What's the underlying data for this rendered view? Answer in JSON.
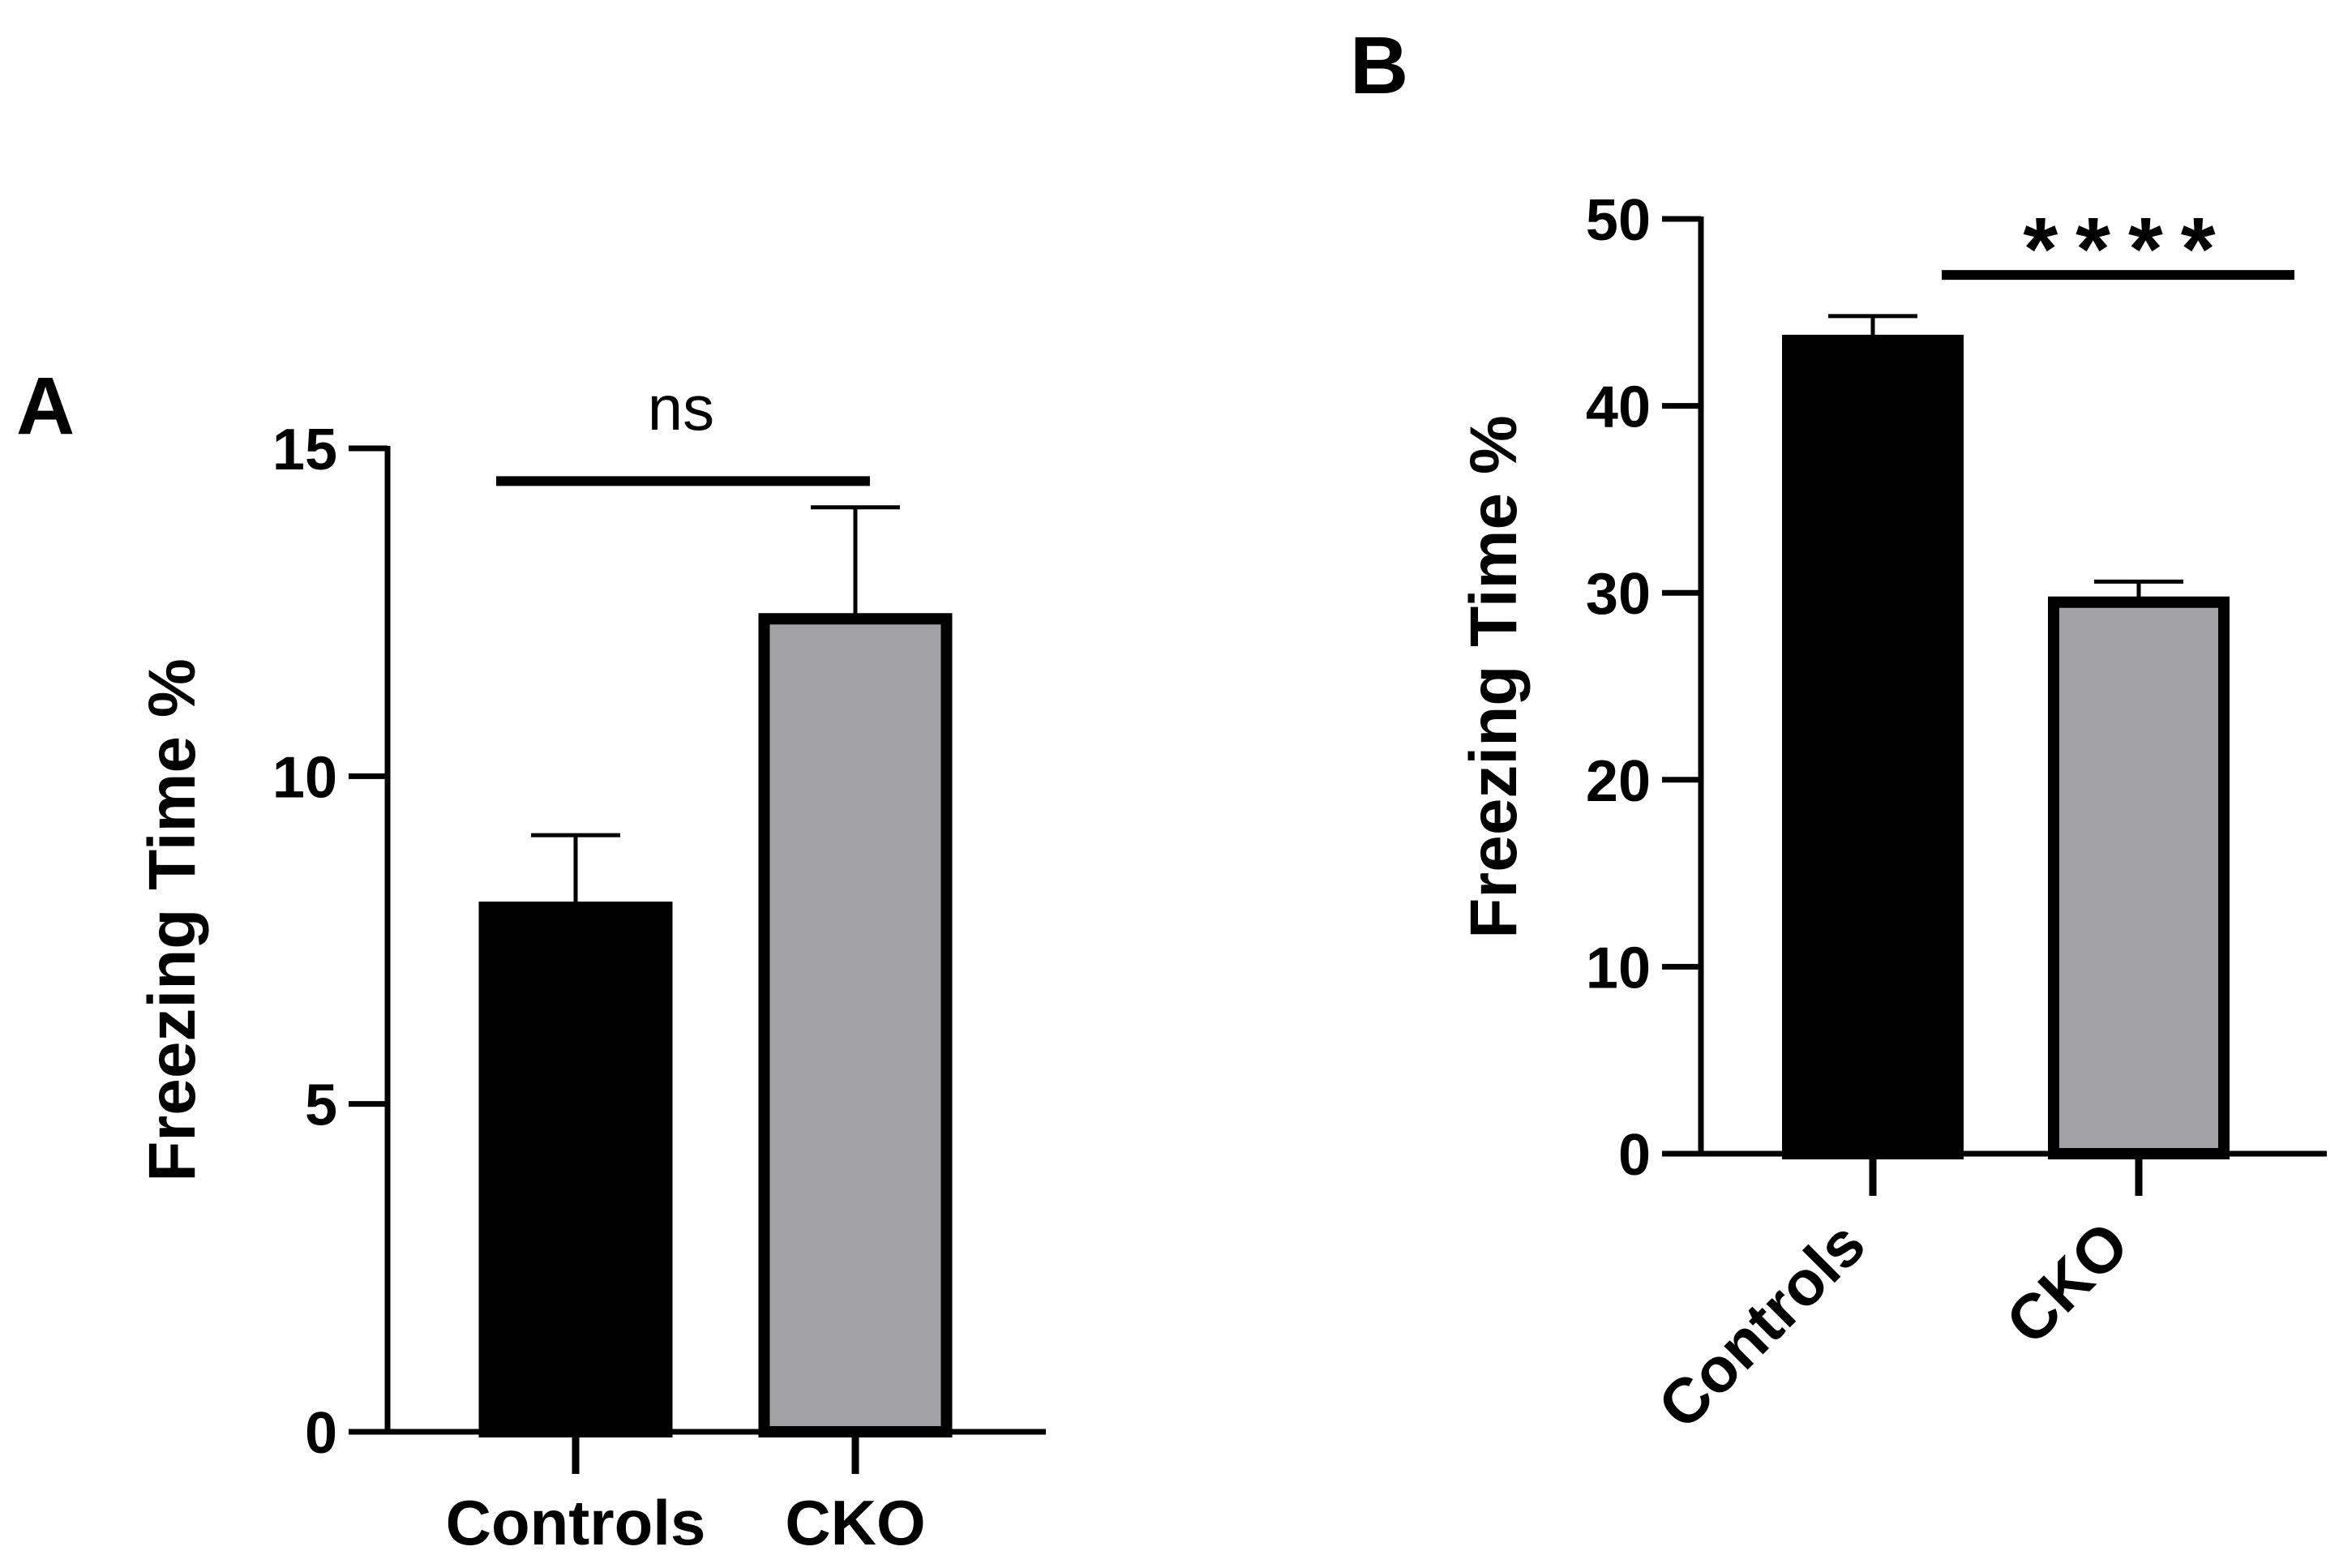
{
  "chart_data": [
    {
      "panel": "A",
      "type": "bar",
      "categories": [
        "Controls",
        "CKO"
      ],
      "values": [
        8.0,
        12.4
      ],
      "error_upper": [
        9.1,
        14.1
      ],
      "bar_colors": [
        "#000000",
        "#a2a1a6"
      ],
      "ylabel": "Freezing Time %",
      "xlabel": "",
      "ylim": [
        0,
        15
      ],
      "yticks": [
        "0",
        "5",
        "10",
        "15"
      ],
      "ytick_values": [
        0,
        5,
        10,
        15
      ],
      "significance": "ns",
      "significance_line_y": 14.5,
      "significance_span": [
        0,
        1
      ],
      "grid": false
    },
    {
      "panel": "B",
      "type": "bar",
      "categories": [
        "Controls",
        "CKO"
      ],
      "values": [
        43.5,
        29.5
      ],
      "error_upper": [
        44.8,
        30.6
      ],
      "bar_colors": [
        "#000000",
        "#a2a1a6"
      ],
      "ylabel": "Freezing Time %",
      "xlabel": "",
      "ylim": [
        0,
        50
      ],
      "yticks": [
        "0",
        "10",
        "20",
        "30",
        "40",
        "50"
      ],
      "ytick_values": [
        0,
        10,
        20,
        30,
        40,
        50
      ],
      "significance": "****",
      "significance_line_y": 47,
      "significance_span": [
        0,
        1
      ],
      "grid": false
    }
  ]
}
